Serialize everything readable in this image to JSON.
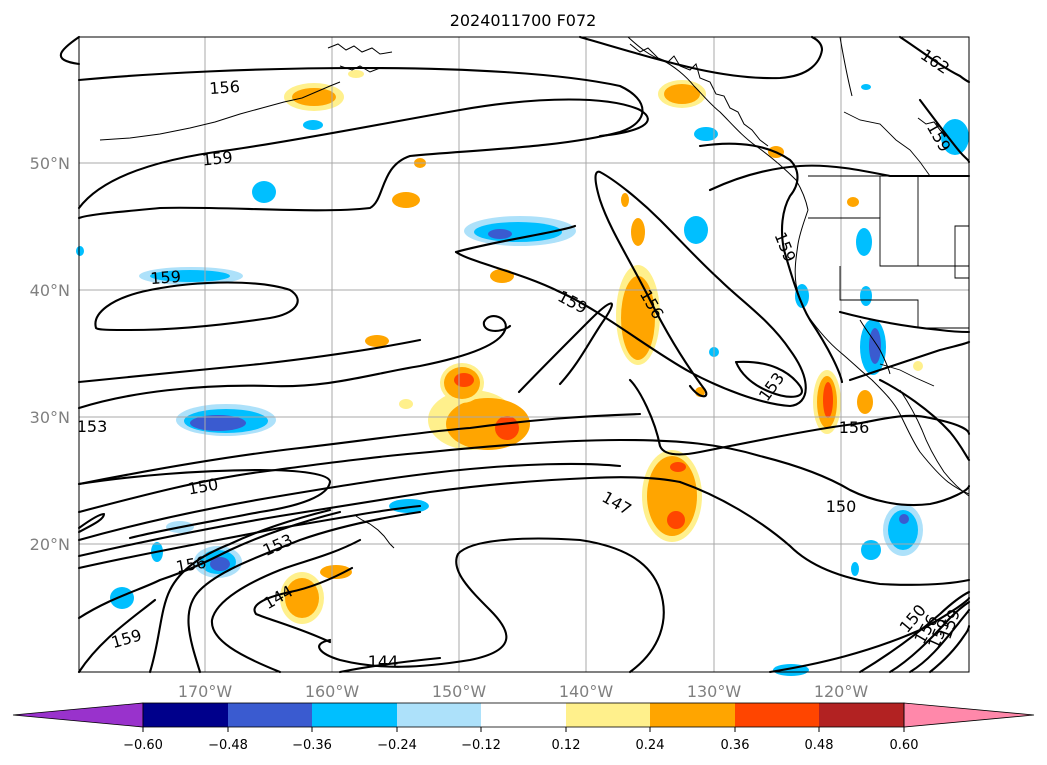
{
  "title": "2024011700 F072",
  "latitude_labels": [
    "50°N",
    "40°N",
    "30°N",
    "20°N"
  ],
  "longitude_labels": [
    "170°W",
    "160°W",
    "150°W",
    "140°W",
    "130°W",
    "120°W"
  ],
  "contour_labels": [
    "156",
    "159",
    "159",
    "159",
    "156",
    "159",
    "153",
    "156",
    "150",
    "153",
    "156",
    "144",
    "159",
    "144",
    "147",
    "150",
    "150",
    "156",
    "159",
    "159",
    "162",
    "159"
  ],
  "colorbar": {
    "ticks": [
      "−0.60",
      "−0.48",
      "−0.36",
      "−0.24",
      "−0.12",
      "0.12",
      "0.24",
      "0.36",
      "0.48",
      "0.60"
    ],
    "colors": [
      "#9932cc",
      "#00008b",
      "#3a5bd0",
      "#00bfff",
      "#ade1fa",
      "#ffffff",
      "#fff08c",
      "#ffa500",
      "#ff4500",
      "#b22222",
      "#ff88aa"
    ]
  },
  "colors": {
    "fill_blue_light": "#ade1fa",
    "fill_blue": "#00bfff",
    "fill_blue_dark": "#3a5bd0",
    "fill_yellow": "#fff08c",
    "fill_orange": "#ffa500",
    "fill_red": "#ff4500"
  }
}
